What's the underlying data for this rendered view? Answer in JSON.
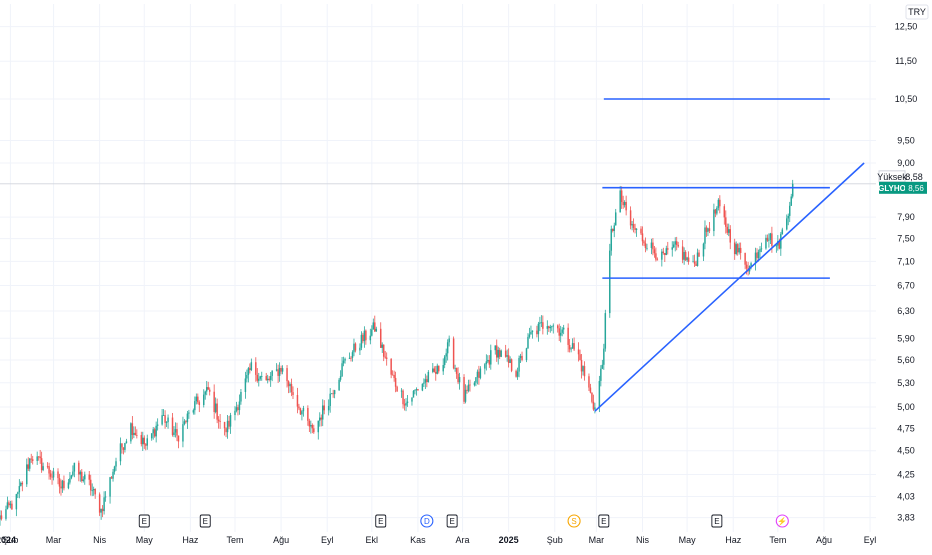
{
  "chart_data": {
    "type": "candlestick",
    "currency": "TRY",
    "ticker": "GLYHO",
    "last_price": 8.56,
    "high_label": "Yüksek",
    "high_value": 8.58,
    "y_scale": "log",
    "ylim": [
      3.7,
      13.2
    ],
    "y_ticks": [
      "3,83",
      "4,03",
      "4,25",
      "4,50",
      "4,75",
      "5,00",
      "5,30",
      "5,60",
      "5,90",
      "6,30",
      "6,70",
      "7,10",
      "7,50",
      "7,90",
      "9,00",
      "9,50",
      "10,50",
      "11,50",
      "12,50"
    ],
    "x_range": [
      "2024-01-25",
      "2025-09-05"
    ],
    "x_ticks": [
      {
        "label": "2024",
        "date": "2024-01-01",
        "bold": true
      },
      {
        "label": "Şub",
        "date": "2024-02-01"
      },
      {
        "label": "Mar",
        "date": "2024-03-01"
      },
      {
        "label": "Nis",
        "date": "2024-04-01"
      },
      {
        "label": "May",
        "date": "2024-05-01"
      },
      {
        "label": "Haz",
        "date": "2024-06-01"
      },
      {
        "label": "Tem",
        "date": "2024-07-01"
      },
      {
        "label": "Ağu",
        "date": "2024-08-01"
      },
      {
        "label": "Eyl",
        "date": "2024-09-01"
      },
      {
        "label": "Ekl",
        "date": "2024-10-01"
      },
      {
        "label": "Kas",
        "date": "2024-11-01"
      },
      {
        "label": "Ara",
        "date": "2024-12-01"
      },
      {
        "label": "2025",
        "date": "2025-01-01",
        "bold": true
      },
      {
        "label": "Şub",
        "date": "2025-02-01"
      },
      {
        "label": "Mar",
        "date": "2025-03-01"
      },
      {
        "label": "Nis",
        "date": "2025-04-01"
      },
      {
        "label": "May",
        "date": "2025-05-01"
      },
      {
        "label": "Haz",
        "date": "2025-06-01"
      },
      {
        "label": "Tem",
        "date": "2025-07-01"
      },
      {
        "label": "Ağu",
        "date": "2025-08-01"
      },
      {
        "label": "Eyl",
        "date": "2025-09-01"
      }
    ],
    "close_anchors": [
      [
        "2024-01-25",
        3.83
      ],
      [
        "2024-02-05",
        4.0
      ],
      [
        "2024-02-15",
        4.45
      ],
      [
        "2024-02-26",
        4.3
      ],
      [
        "2024-03-06",
        4.12
      ],
      [
        "2024-03-15",
        4.3
      ],
      [
        "2024-03-25",
        4.15
      ],
      [
        "2024-04-02",
        3.9
      ],
      [
        "2024-04-12",
        4.4
      ],
      [
        "2024-04-22",
        4.78
      ],
      [
        "2024-05-02",
        4.55
      ],
      [
        "2024-05-13",
        4.9
      ],
      [
        "2024-05-23",
        4.65
      ],
      [
        "2024-06-03",
        5.0
      ],
      [
        "2024-06-13",
        5.2
      ],
      [
        "2024-06-24",
        4.7
      ],
      [
        "2024-07-03",
        5.05
      ],
      [
        "2024-07-12",
        5.5
      ],
      [
        "2024-07-22",
        5.3
      ],
      [
        "2024-08-01",
        5.5
      ],
      [
        "2024-08-12",
        5.05
      ],
      [
        "2024-08-22",
        4.7
      ],
      [
        "2024-09-02",
        5.1
      ],
      [
        "2024-09-12",
        5.55
      ],
      [
        "2024-09-23",
        5.85
      ],
      [
        "2024-10-03",
        6.05
      ],
      [
        "2024-10-14",
        5.4
      ],
      [
        "2024-10-24",
        5.05
      ],
      [
        "2024-11-04",
        5.3
      ],
      [
        "2024-11-14",
        5.45
      ],
      [
        "2024-11-22",
        5.8
      ],
      [
        "2024-12-02",
        5.1
      ],
      [
        "2024-12-12",
        5.4
      ],
      [
        "2024-12-23",
        5.75
      ],
      [
        "2025-01-06",
        5.45
      ],
      [
        "2025-01-16",
        5.95
      ],
      [
        "2025-01-27",
        6.15
      ],
      [
        "2025-02-06",
        6.0
      ],
      [
        "2025-02-17",
        5.65
      ],
      [
        "2025-02-28",
        4.98
      ],
      [
        "2025-03-05",
        5.55
      ],
      [
        "2025-03-11",
        7.6
      ],
      [
        "2025-03-17",
        8.3
      ],
      [
        "2025-03-24",
        7.75
      ],
      [
        "2025-04-03",
        7.45
      ],
      [
        "2025-04-14",
        7.15
      ],
      [
        "2025-04-24",
        7.35
      ],
      [
        "2025-05-05",
        7.0
      ],
      [
        "2025-05-14",
        7.65
      ],
      [
        "2025-05-22",
        8.1
      ],
      [
        "2025-06-02",
        7.35
      ],
      [
        "2025-06-12",
        7.0
      ],
      [
        "2025-06-23",
        7.6
      ],
      [
        "2025-07-01",
        7.35
      ],
      [
        "2025-07-07",
        7.9
      ],
      [
        "2025-07-11",
        8.56
      ]
    ],
    "drawings": [
      {
        "type": "hline",
        "value": 10.5,
        "x1": "2025-03-06",
        "x2": "2025-08-05"
      },
      {
        "type": "hline",
        "value": 8.48,
        "x1": "2025-03-05",
        "x2": "2025-08-05"
      },
      {
        "type": "hline",
        "value": 6.82,
        "x1": "2025-03-05",
        "x2": "2025-08-05"
      },
      {
        "type": "trendline",
        "p1": [
          "2025-02-28",
          4.95
        ],
        "p2": [
          "2025-08-28",
          9.0
        ]
      }
    ],
    "events": [
      {
        "date": "2024-05-01",
        "kind": "earnings",
        "label": "E"
      },
      {
        "date": "2024-06-11",
        "kind": "earnings",
        "label": "E"
      },
      {
        "date": "2024-10-07",
        "kind": "earnings",
        "label": "E"
      },
      {
        "date": "2024-11-07",
        "kind": "dividend",
        "label": "D"
      },
      {
        "date": "2024-11-24",
        "kind": "earnings",
        "label": "E"
      },
      {
        "date": "2025-02-14",
        "kind": "split",
        "label": "S"
      },
      {
        "date": "2025-03-06",
        "kind": "earnings",
        "label": "E"
      },
      {
        "date": "2025-05-21",
        "kind": "earnings",
        "label": "E"
      },
      {
        "date": "2025-07-04",
        "kind": "flash",
        "label": "⚡"
      }
    ],
    "colors": {
      "up": "#26a69a",
      "down": "#ef5350",
      "drawing": "#2962ff",
      "price_tag": "#089981",
      "grid": "#f0f3fa",
      "text": "#131722",
      "dividend": "#2962ff",
      "split": "#f7a600",
      "flash": "#e040fb"
    }
  }
}
